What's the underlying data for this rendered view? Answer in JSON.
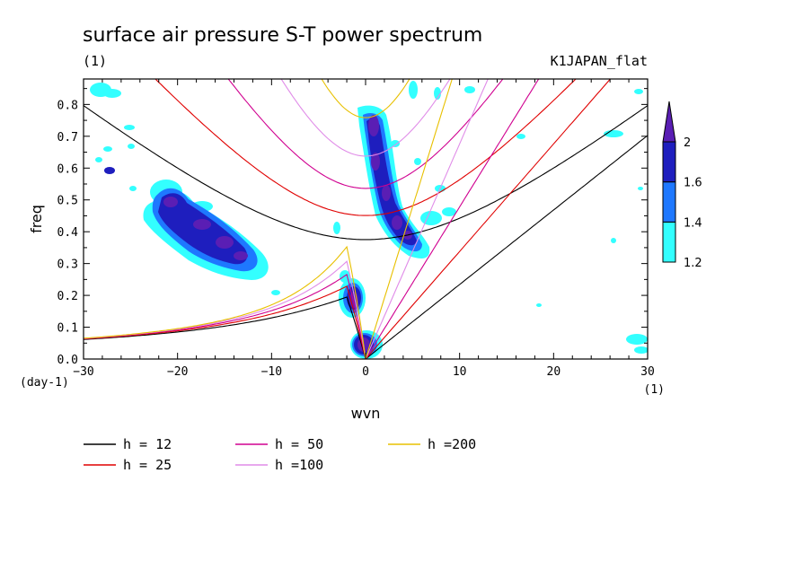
{
  "chart_data": {
    "type": "contour",
    "title": "surface air pressure S-T power spectrum",
    "subtitle_left": "(1)",
    "subtitle_right": "K1JAPAN_flat",
    "xlabel": "wvn",
    "ylabel": "freq",
    "x_unit": "(1)",
    "y_unit": "(day-1)",
    "xlim": [
      -30,
      30
    ],
    "ylim": [
      0,
      0.88
    ],
    "x_ticks": [
      -30,
      -20,
      -10,
      0,
      10,
      20,
      30
    ],
    "x_tick_labels": [
      "−30",
      "−20",
      "−10",
      "0",
      "10",
      "20",
      "30"
    ],
    "y_ticks": [
      0,
      0.1,
      0.2,
      0.3,
      0.4,
      0.5,
      0.6,
      0.7,
      0.8
    ],
    "y_tick_labels": [
      "0.0",
      "0.1",
      "0.2",
      "0.3",
      "0.4",
      "0.5",
      "0.6",
      "0.7",
      "0.8"
    ],
    "colorbar": {
      "levels": [
        1.2,
        1.4,
        1.6,
        2
      ],
      "level_labels": [
        "1.2",
        "1.4",
        "1.6",
        "2"
      ],
      "colors": [
        "#33ffff",
        "#1e78ff",
        "#1e1ebe",
        "#5a1eb4"
      ]
    },
    "dispersion_curves": [
      {
        "label": "h = 12",
        "h": 12,
        "color": "#000000"
      },
      {
        "label": "h = 25",
        "h": 25,
        "color": "#e00000"
      },
      {
        "label": "h = 50",
        "h": 50,
        "color": "#d00090"
      },
      {
        "label": "h =100",
        "h": 100,
        "color": "#e08ce8"
      },
      {
        "label": "h =200",
        "h": 200,
        "color": "#e8c000"
      }
    ],
    "contour_regions": [
      {
        "level": 1.2,
        "x": [
          -30,
          -27
        ],
        "y": [
          0.8,
          0.88
        ]
      },
      {
        "level": 1.4,
        "x": [
          -24,
          -14
        ],
        "y": [
          0.24,
          0.56
        ]
      },
      {
        "level": 2,
        "x": [
          -22,
          -12
        ],
        "y": [
          0.26,
          0.5
        ]
      },
      {
        "level": 1.6,
        "x": [
          -21,
          -12
        ],
        "y": [
          0.27,
          0.49
        ]
      },
      {
        "level": 2,
        "x": [
          0.2,
          2
        ],
        "y": [
          0.65,
          0.79
        ]
      },
      {
        "level": 2,
        "x": [
          -1,
          1
        ],
        "y": [
          0.15,
          0.26
        ]
      },
      {
        "level": 2,
        "x": [
          -1,
          2
        ],
        "y": [
          0,
          0.09
        ]
      },
      {
        "level": 1.6,
        "x": [
          0,
          6
        ],
        "y": [
          0.29,
          0.55
        ]
      },
      {
        "level": 1.2,
        "x": [
          25,
          30
        ],
        "y": [
          0.7,
          0.74
        ]
      },
      {
        "level": 1.2,
        "x": [
          27,
          30
        ],
        "y": [
          0.02,
          0.08
        ]
      }
    ]
  }
}
